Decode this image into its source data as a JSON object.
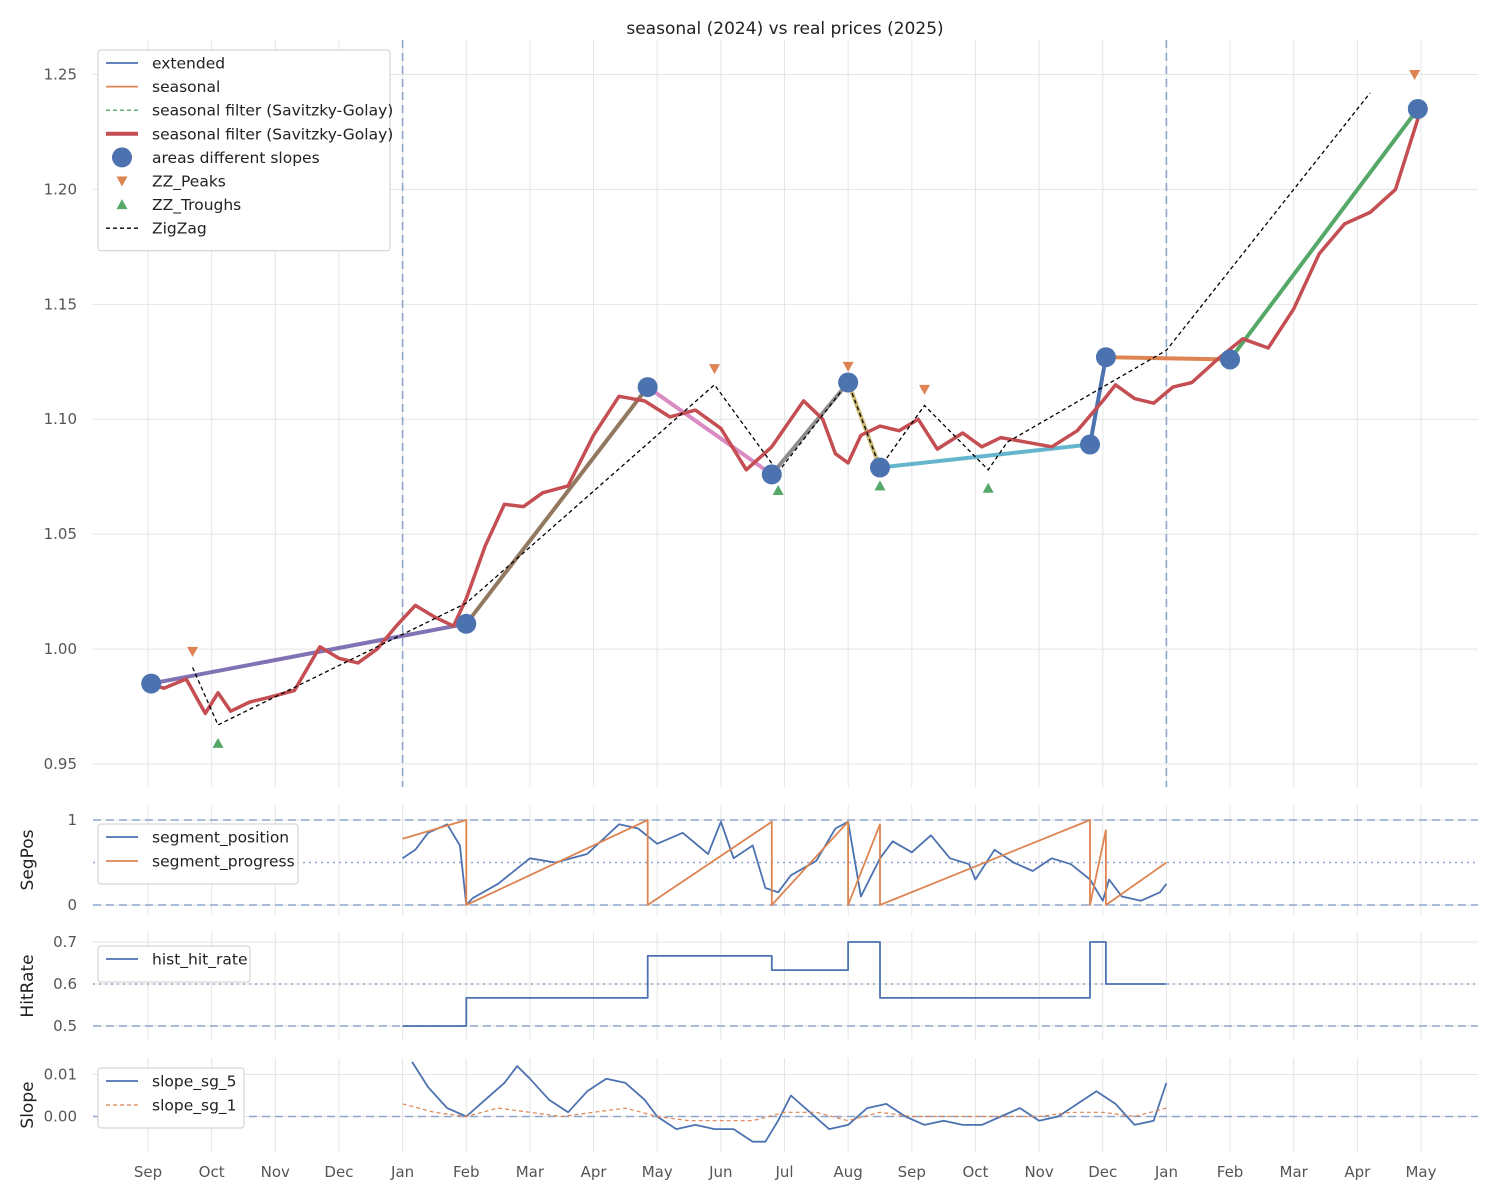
{
  "chart_data": [
    {
      "type": "line",
      "title": "seasonal (2024) vs real prices (2025)",
      "ylabel": "",
      "x_tick_labels": [
        "Sep",
        "Oct",
        "Nov",
        "Dec",
        "Jan",
        "Feb",
        "Mar",
        "Apr",
        "May",
        "Jun",
        "Jul",
        "Aug",
        "Sep",
        "Oct",
        "Nov",
        "Dec",
        "Jan",
        "Feb",
        "Mar",
        "Apr",
        "May"
      ],
      "ylim": [
        0.94,
        1.265
      ],
      "yticks": [
        0.95,
        1.0,
        1.05,
        1.1,
        1.15,
        1.2,
        1.25
      ],
      "ytick_labels": [
        "0.95",
        "1.00",
        "1.05",
        "1.10",
        "1.15",
        "1.20",
        "1.25"
      ],
      "vlines_at_tick_index": [
        4,
        16
      ],
      "legend_placement": "top-left",
      "grid": true,
      "legend": [
        {
          "label": "extended",
          "kind": "line",
          "color": "#4c72b0"
        },
        {
          "label": "seasonal",
          "kind": "line",
          "color": "#dd8452"
        },
        {
          "label": "seasonal filter (Savitzky-Golay)",
          "kind": "dashed",
          "color": "#55a868"
        },
        {
          "label": "seasonal filter (Savitzky-Golay)",
          "kind": "thick",
          "color": "#c44e52"
        },
        {
          "label": "areas different slopes",
          "kind": "dot",
          "color": "#4c72b0"
        },
        {
          "label": "ZZ_Peaks",
          "kind": "tri-down",
          "color": "#dd8452"
        },
        {
          "label": "ZZ_Troughs",
          "kind": "tri-up",
          "color": "#55a868"
        },
        {
          "label": "ZigZag",
          "kind": "dashed",
          "color": "#000000"
        }
      ],
      "series": [
        {
          "name": "seasonal filter (Savitzky-Golay)",
          "style": "thick",
          "color": "#c44e52",
          "x": [
            0,
            0.25,
            0.6,
            0.9,
            1.1,
            1.3,
            1.6,
            1.9,
            2.3,
            2.7,
            3.0,
            3.3,
            3.6,
            3.9,
            4.2,
            4.5,
            4.8,
            5.0,
            5.3,
            5.6,
            5.9,
            6.2,
            6.6,
            7.0,
            7.4,
            7.8,
            8.2,
            8.6,
            9.0,
            9.4,
            9.8,
            10.0,
            10.3,
            10.6,
            10.8,
            11.0,
            11.2,
            11.5,
            11.8,
            12.1,
            12.4,
            12.8,
            13.1,
            13.4,
            13.8,
            14.2,
            14.6,
            15.0,
            15.2,
            15.5,
            15.8,
            16.1,
            16.4,
            16.8,
            17.2,
            17.6,
            18.0,
            18.4,
            18.8,
            19.2,
            19.6,
            20.0
          ],
          "y": [
            0.985,
            0.983,
            0.987,
            0.972,
            0.981,
            0.973,
            0.977,
            0.979,
            0.982,
            1.001,
            0.996,
            0.994,
            1.0,
            1.01,
            1.019,
            1.014,
            1.01,
            1.022,
            1.045,
            1.063,
            1.062,
            1.068,
            1.071,
            1.093,
            1.11,
            1.108,
            1.101,
            1.104,
            1.096,
            1.078,
            1.088,
            1.096,
            1.108,
            1.1,
            1.085,
            1.081,
            1.093,
            1.097,
            1.095,
            1.1,
            1.087,
            1.094,
            1.088,
            1.092,
            1.09,
            1.088,
            1.095,
            1.108,
            1.115,
            1.109,
            1.107,
            1.114,
            1.116,
            1.126,
            1.135,
            1.131,
            1.148,
            1.172,
            1.185,
            1.19,
            1.2,
            1.235
          ]
        },
        {
          "name": "ZigZag",
          "style": "dashed",
          "color": "#000000",
          "x": [
            0.7,
            1.1,
            5.0,
            8.9,
            9.9,
            11.0,
            11.5,
            12.2,
            13.2,
            13.5,
            16.0,
            19.2
          ],
          "y": [
            0.992,
            0.967,
            1.02,
            1.115,
            1.077,
            1.116,
            1.079,
            1.106,
            1.078,
            1.09,
            1.13,
            1.242
          ]
        }
      ],
      "areas_different_slopes": {
        "x": [
          0.05,
          5.0,
          7.85,
          9.8,
          11.0,
          11.5,
          14.8,
          15.05,
          17.0,
          19.95
        ],
        "y": [
          0.985,
          1.011,
          1.114,
          1.076,
          1.116,
          1.079,
          1.089,
          1.127,
          1.126,
          1.235
        ],
        "segment_colors": [
          "#8172b3",
          "#937860",
          "#da8bc3",
          "#8c8c8c",
          "#ccb974",
          "#64b5cd",
          "#4c72b0",
          "#dd8452",
          "#55a868"
        ]
      },
      "zz_peaks": {
        "x": [
          0.7,
          8.9,
          11.0,
          12.2,
          19.9
        ],
        "y": [
          0.999,
          1.122,
          1.123,
          1.113,
          1.25
        ]
      },
      "zz_troughs": {
        "x": [
          1.1,
          9.9,
          11.5,
          13.2
        ],
        "y": [
          0.959,
          1.069,
          1.071,
          1.07
        ]
      }
    },
    {
      "type": "line",
      "title": "",
      "ylabel": "SegPos",
      "ylim": [
        0,
        1
      ],
      "yticks": [
        0,
        1
      ],
      "ytick_labels": [
        "0",
        "1"
      ],
      "grid": true,
      "legend_placement": "top-left",
      "hlines": [
        0,
        0.5,
        1
      ],
      "legend": [
        {
          "label": "segment_position",
          "kind": "line",
          "color": "#4c72b0"
        },
        {
          "label": "segment_progress",
          "kind": "line",
          "color": "#dd8452"
        }
      ],
      "series": [
        {
          "name": "segment_position",
          "color": "#4c72b0",
          "x": [
            4.0,
            4.2,
            4.4,
            4.7,
            4.9,
            5.0,
            5.1,
            5.5,
            6.0,
            6.4,
            6.9,
            7.4,
            7.7,
            8.0,
            8.4,
            8.8,
            9.0,
            9.2,
            9.5,
            9.7,
            9.9,
            10.1,
            10.5,
            10.8,
            11.0,
            11.2,
            11.5,
            11.7,
            12.0,
            12.3,
            12.6,
            12.9,
            13.0,
            13.3,
            13.6,
            13.9,
            14.2,
            14.5,
            14.8,
            15.0,
            15.1,
            15.3,
            15.6,
            15.9,
            16.0
          ],
          "y": [
            0.55,
            0.65,
            0.85,
            0.95,
            0.7,
            0.0,
            0.08,
            0.25,
            0.55,
            0.5,
            0.6,
            0.95,
            0.9,
            0.72,
            0.85,
            0.6,
            0.98,
            0.55,
            0.7,
            0.2,
            0.15,
            0.35,
            0.52,
            0.9,
            0.98,
            0.1,
            0.55,
            0.75,
            0.62,
            0.82,
            0.55,
            0.48,
            0.3,
            0.65,
            0.5,
            0.4,
            0.55,
            0.48,
            0.3,
            0.05,
            0.3,
            0.1,
            0.05,
            0.15,
            0.25
          ]
        },
        {
          "name": "segment_progress",
          "color": "#dd8452",
          "x": [
            4.0,
            5.0,
            5.0,
            7.85,
            7.85,
            9.8,
            9.8,
            11.0,
            11.0,
            11.5,
            11.5,
            14.8,
            14.8,
            15.05,
            15.05,
            16.0
          ],
          "y": [
            0.78,
            1.0,
            0.0,
            1.0,
            0.0,
            0.98,
            0.0,
            0.98,
            0.0,
            0.95,
            0.0,
            1.0,
            0.0,
            0.88,
            0.0,
            0.5
          ]
        }
      ]
    },
    {
      "type": "line",
      "title": "",
      "ylabel": "HitRate",
      "ylim": [
        0.5,
        0.7
      ],
      "yticks": [
        0.5,
        0.6,
        0.7
      ],
      "ytick_labels": [
        "0.5",
        "0.6",
        "0.7"
      ],
      "grid": true,
      "legend_placement": "top-left",
      "hlines": [
        0.5,
        0.6
      ],
      "legend": [
        {
          "label": "hist_hit_rate",
          "kind": "line",
          "color": "#4c72b0"
        }
      ],
      "series": [
        {
          "name": "hist_hit_rate",
          "color": "#4c72b0",
          "step": true,
          "x": [
            4.0,
            5.0,
            7.85,
            9.8,
            11.0,
            11.5,
            14.8,
            15.05,
            16.0
          ],
          "y": [
            0.5,
            0.567,
            0.667,
            0.633,
            0.7,
            0.567,
            0.7,
            0.6,
            0.6
          ]
        }
      ]
    },
    {
      "type": "line",
      "title": "",
      "ylabel": "Slope",
      "ylim": [
        -0.0075,
        0.0135
      ],
      "yticks": [
        0.0,
        0.01
      ],
      "ytick_labels": [
        "0.00",
        "0.01"
      ],
      "grid": true,
      "legend_placement": "top-left",
      "hlines": [
        0
      ],
      "legend": [
        {
          "label": "slope_sg_5",
          "kind": "line",
          "color": "#4c72b0"
        },
        {
          "label": "slope_sg_1",
          "kind": "dashed",
          "color": "#dd8452"
        }
      ],
      "series": [
        {
          "name": "slope_sg_5",
          "color": "#4c72b0",
          "x": [
            4.15,
            4.4,
            4.7,
            5.0,
            5.3,
            5.6,
            5.8,
            6.0,
            6.3,
            6.6,
            6.9,
            7.2,
            7.5,
            7.8,
            8.0,
            8.3,
            8.6,
            8.9,
            9.2,
            9.5,
            9.7,
            9.9,
            10.1,
            10.4,
            10.7,
            11.0,
            11.3,
            11.6,
            11.9,
            12.2,
            12.5,
            12.8,
            13.1,
            13.4,
            13.7,
            14.0,
            14.3,
            14.6,
            14.9,
            15.2,
            15.5,
            15.8,
            16.0
          ],
          "y": [
            0.013,
            0.007,
            0.002,
            0.0,
            0.004,
            0.008,
            0.012,
            0.009,
            0.004,
            0.001,
            0.006,
            0.009,
            0.008,
            0.004,
            0.0,
            -0.003,
            -0.002,
            -0.003,
            -0.003,
            -0.006,
            -0.006,
            -0.001,
            0.005,
            0.001,
            -0.003,
            -0.002,
            0.002,
            0.003,
            0.0,
            -0.002,
            -0.001,
            -0.002,
            -0.002,
            0.0,
            0.002,
            -0.001,
            0.0,
            0.003,
            0.006,
            0.003,
            -0.002,
            -0.001,
            0.008
          ]
        },
        {
          "name": "slope_sg_1",
          "color": "#dd8452",
          "dashed": true,
          "x": [
            4.0,
            4.5,
            5.0,
            5.5,
            6.0,
            6.5,
            7.0,
            7.5,
            8.0,
            8.5,
            9.0,
            9.5,
            10.0,
            10.5,
            11.0,
            11.5,
            12.0,
            12.5,
            13.0,
            13.5,
            14.0,
            14.5,
            15.0,
            15.5,
            16.0
          ],
          "y": [
            0.003,
            0.001,
            0.0,
            0.002,
            0.001,
            0.0,
            0.001,
            0.002,
            0.0,
            -0.001,
            -0.001,
            -0.001,
            0.001,
            0.001,
            -0.001,
            0.001,
            0.0,
            0.0,
            0.0,
            0.0,
            0.0,
            0.001,
            0.001,
            0.0,
            0.002
          ]
        }
      ]
    }
  ]
}
